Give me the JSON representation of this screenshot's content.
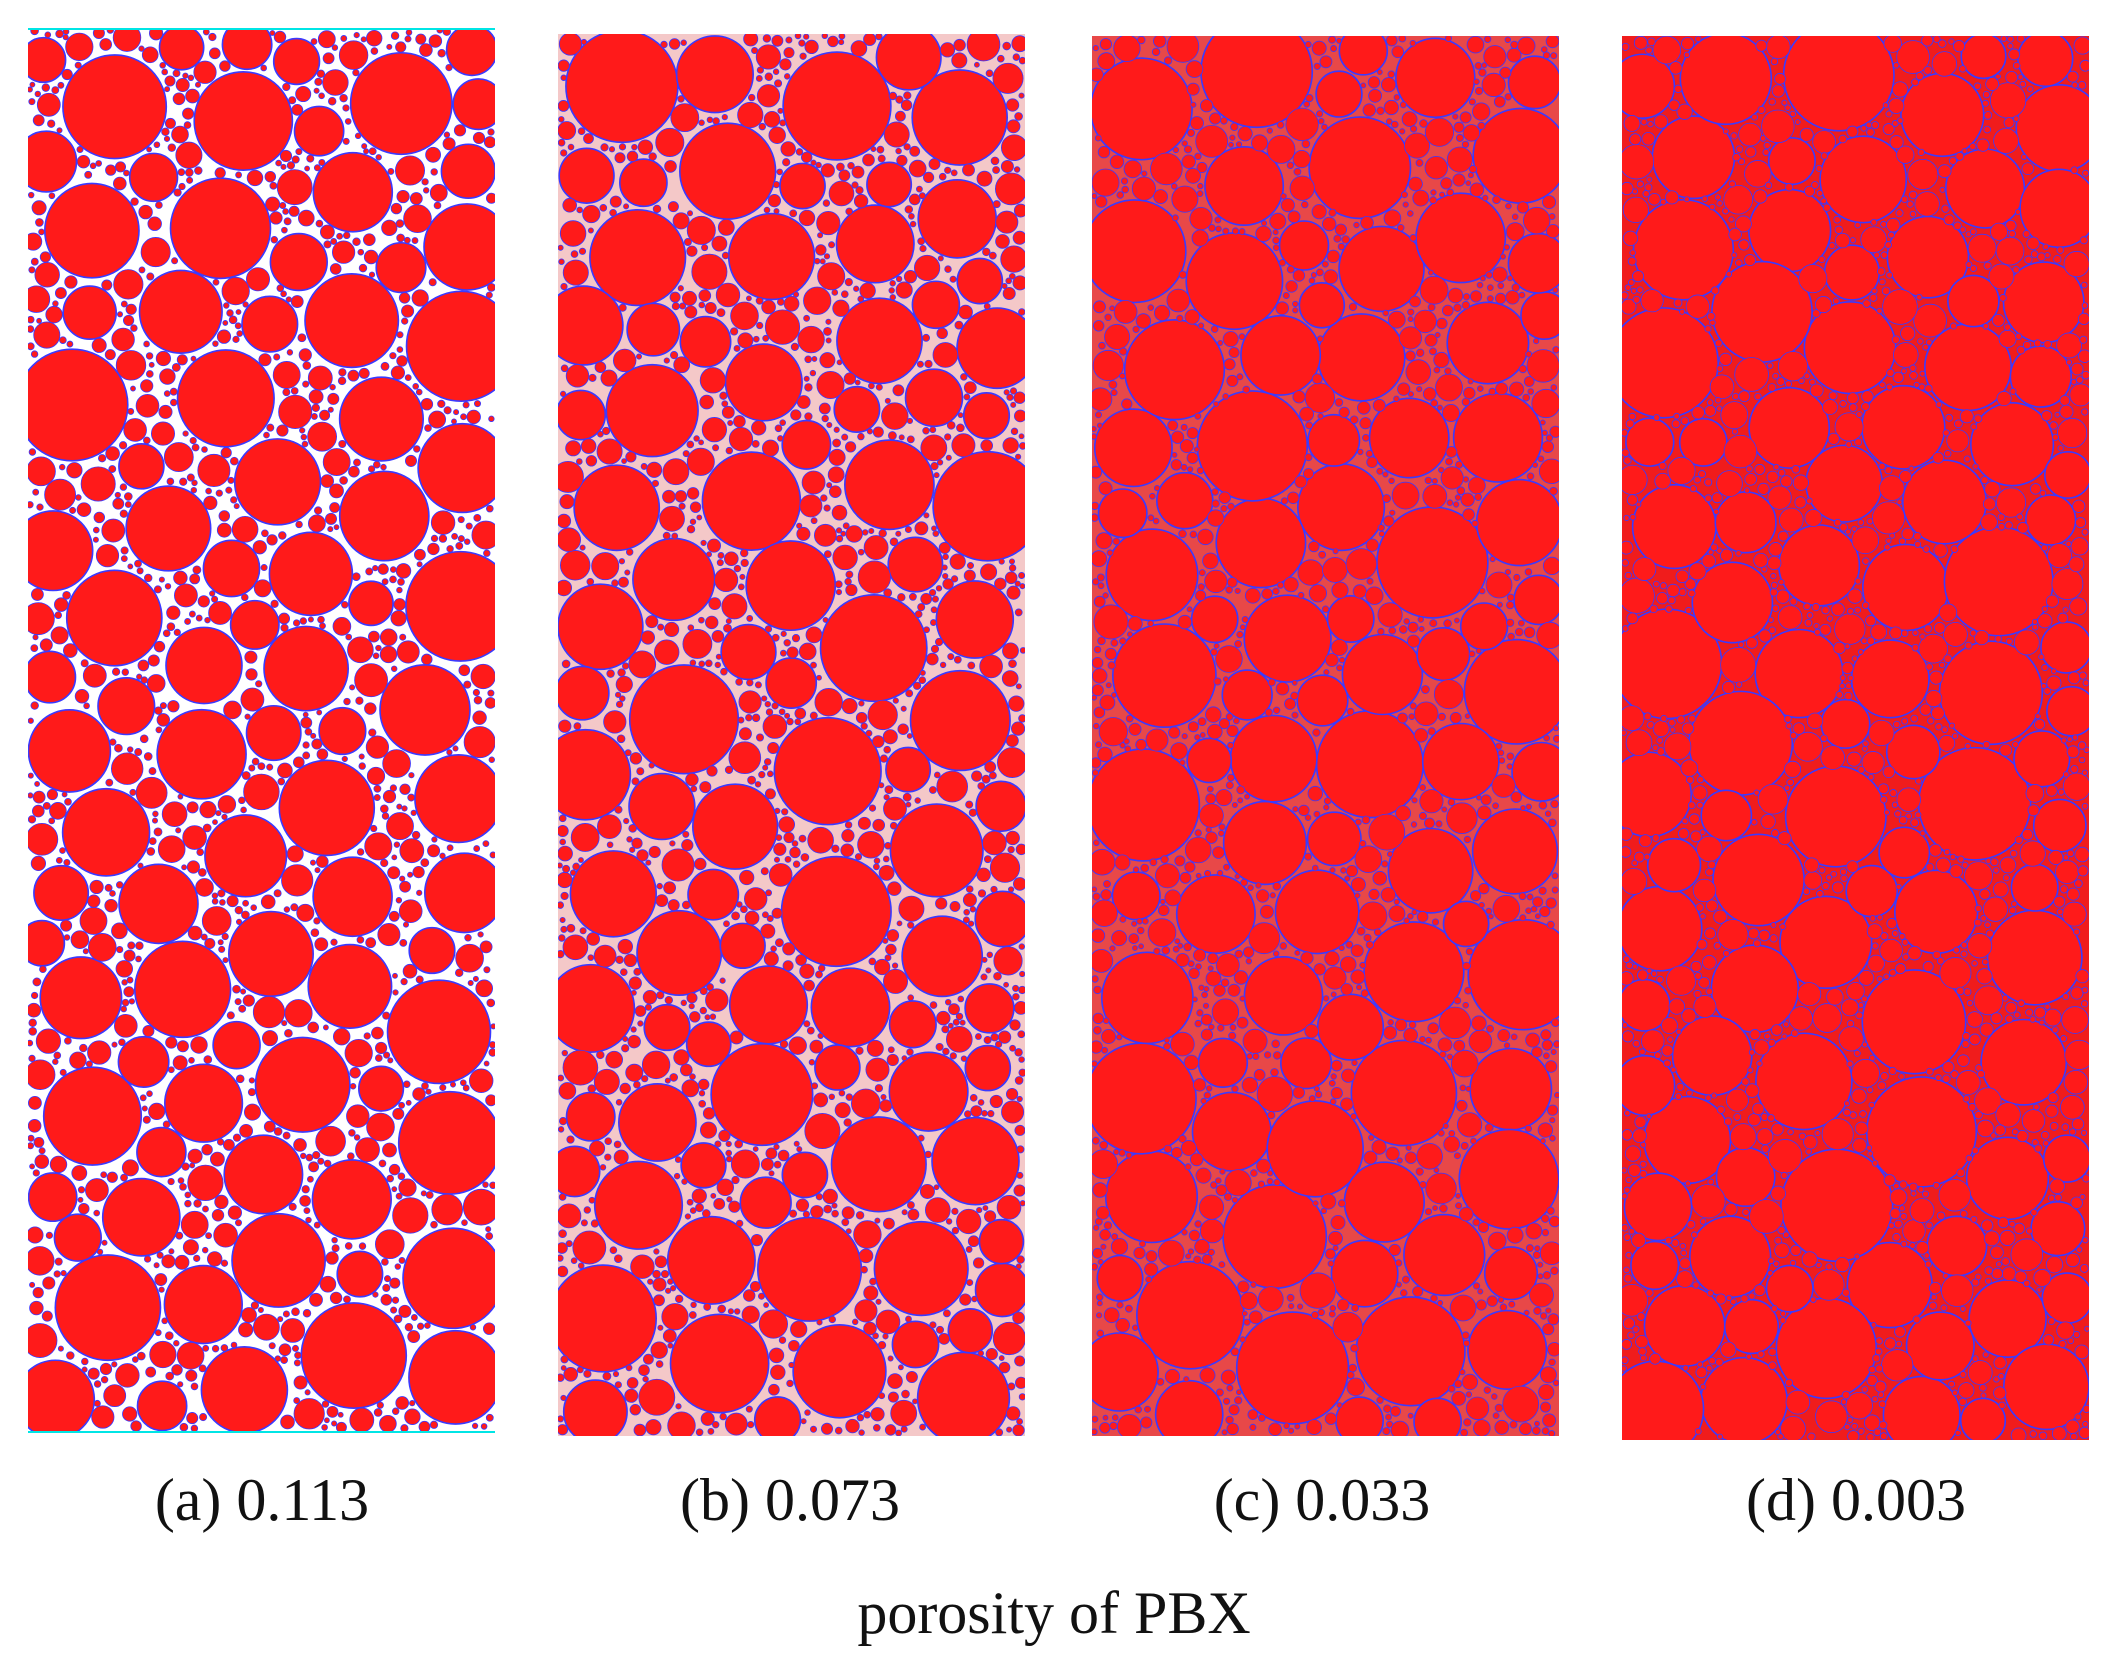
{
  "figure": {
    "panels": [
      {
        "id": "a",
        "caption": "(a) 0.113",
        "porosity": 0.113
      },
      {
        "id": "b",
        "caption": "(b) 0.073",
        "porosity": 0.073
      },
      {
        "id": "c",
        "caption": "(c) 0.033",
        "porosity": 0.033
      },
      {
        "id": "d",
        "caption": "(d) 0.003",
        "porosity": 0.003
      }
    ],
    "shared_label": "porosity of  PBX"
  },
  "colors": {
    "particle_fill": "#ff1a1a",
    "particle_edge": "#3a3aff",
    "void": "#ffffff",
    "boundary_line": "#00e5e5"
  }
}
